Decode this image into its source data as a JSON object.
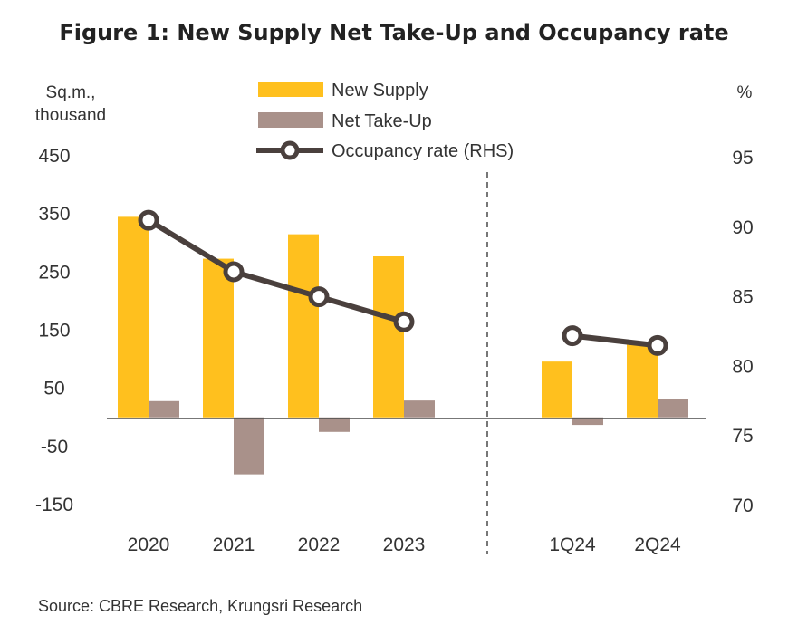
{
  "chart_data": {
    "type": "bar",
    "title": "Figure 1: New Supply Net Take-Up and Occupancy rate",
    "left_unit": [
      "Sq.m.,",
      "thousand"
    ],
    "right_unit": "%",
    "categories": [
      "2020",
      "2021",
      "2022",
      "2023",
      "1Q24",
      "2Q24"
    ],
    "series": [
      {
        "name": "New Supply",
        "kind": "bar",
        "axis": "left",
        "color": "#FFC01E",
        "values": [
          345,
          273,
          315,
          277,
          96,
          125
        ]
      },
      {
        "name": "Net Take-Up",
        "kind": "bar",
        "axis": "left",
        "color": "#A9918A",
        "values": [
          28,
          -98,
          -25,
          29,
          -13,
          32
        ]
      },
      {
        "name": "Occupancy rate (RHS)",
        "kind": "line",
        "axis": "right",
        "color": "#4A403D",
        "values": [
          90.5,
          86.8,
          85.0,
          83.2,
          82.2,
          81.5
        ]
      }
    ],
    "left_axis": {
      "ylim": [
        -150,
        450
      ],
      "ticks": [
        450,
        350,
        250,
        150,
        50,
        -50,
        -150
      ]
    },
    "right_axis": {
      "ylim": [
        70,
        95
      ],
      "ticks": [
        95,
        90,
        85,
        80,
        75,
        70
      ]
    },
    "legend_position": "top-center",
    "grid": false,
    "source": "Source: CBRE Research, Krungsri Research"
  }
}
